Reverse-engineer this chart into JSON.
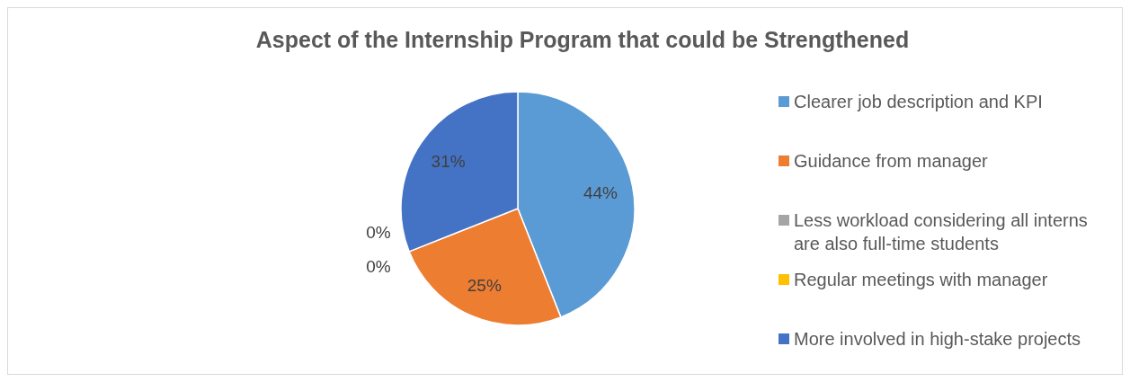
{
  "chart_data": {
    "type": "pie",
    "title": "Aspect of the Internship Program that could be Strengthened",
    "categories": [
      "Clearer job description and KPI",
      "Guidance from manager",
      "Less workload considering all interns are also full-time students",
      "Regular meetings with manager",
      "More involved in high-stake projects"
    ],
    "values": [
      44,
      25,
      0,
      0,
      31
    ],
    "colors": [
      "#5b9bd5",
      "#ed7d31",
      "#a5a5a5",
      "#ffc000",
      "#4472c4"
    ],
    "value_labels": [
      "44%",
      "25%",
      "0%",
      "0%",
      "31%"
    ],
    "legend": "right"
  }
}
